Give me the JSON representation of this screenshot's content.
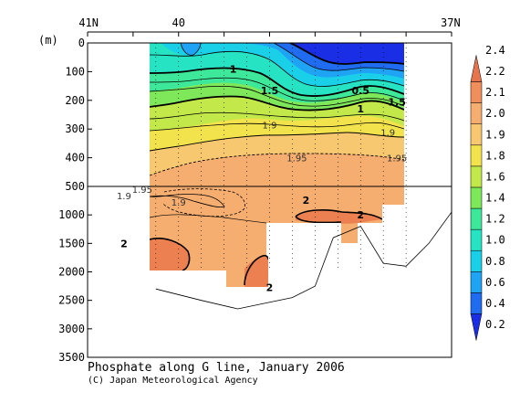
{
  "chart_data": {
    "type": "heatmap",
    "title": "Phosphate along G line, January 2006",
    "credit": "(C) Japan Meteorological Agency",
    "ylabel": "(m)",
    "x_axis": {
      "position": "top",
      "direction": "north-to-south",
      "range": [
        41,
        37
      ],
      "tick_labels": [
        {
          "lat": 41,
          "label": "41N"
        },
        {
          "lat": 40,
          "label": "40"
        },
        {
          "lat": 37,
          "label": "37N"
        }
      ],
      "minor_ticks_lat": [
        41,
        40.5,
        40,
        39.5,
        39,
        38.5,
        38,
        37.5,
        37
      ]
    },
    "y_axis": {
      "inverted": true,
      "split_depth": 500,
      "upper_ticks": [
        0,
        100,
        200,
        300,
        400,
        500
      ],
      "lower_ticks": [
        1000,
        1500,
        2000,
        2500,
        3000,
        3500
      ],
      "tick_labels": [
        "0",
        "100",
        "200",
        "300",
        "400",
        "500",
        "1000",
        "1500",
        "2000",
        "2500",
        "3000",
        "3500"
      ]
    },
    "colorbar": {
      "position": "right",
      "levels": [
        0.2,
        0.4,
        0.6,
        0.8,
        1.0,
        1.2,
        1.4,
        1.6,
        1.8,
        1.9,
        2.0,
        2.1,
        2.2,
        2.4
      ],
      "labels": [
        "0.2",
        "0.4",
        "0.6",
        "0.8",
        "1.0",
        "1.2",
        "1.4",
        "1.6",
        "1.8",
        "1.9",
        "2.0",
        "2.1",
        "2.2",
        "2.4"
      ],
      "colors": [
        "#1a2ee6",
        "#1f6cf0",
        "#1fa3f5",
        "#1ad0e8",
        "#26e3c4",
        "#3ee89a",
        "#7ee85a",
        "#c2e84a",
        "#f2e24c",
        "#f8c870",
        "#f6ae70",
        "#f08e5c",
        "#e8744c"
      ]
    },
    "contour_labels": [
      {
        "lat": 39.4,
        "depth": 90,
        "label": "1"
      },
      {
        "lat": 39.0,
        "depth": 165,
        "label": "1.5"
      },
      {
        "lat": 38.0,
        "depth": 165,
        "label": "0.5"
      },
      {
        "lat": 38.0,
        "depth": 230,
        "label": "1"
      },
      {
        "lat": 37.6,
        "depth": 205,
        "label": "1.5"
      },
      {
        "lat": 37.7,
        "depth": 310,
        "label": "1.9"
      },
      {
        "lat": 39.0,
        "depth": 285,
        "label": "1.9"
      },
      {
        "lat": 38.7,
        "depth": 400,
        "label": "1.95"
      },
      {
        "lat": 37.6,
        "depth": 400,
        "label": "1.95"
      },
      {
        "lat": 40.6,
        "depth": 660,
        "label": "1.9"
      },
      {
        "lat": 40.4,
        "depth": 550,
        "label": "1.95"
      },
      {
        "lat": 40.0,
        "depth": 775,
        "label": "1.9"
      },
      {
        "lat": 38.6,
        "depth": 740,
        "label": "2"
      },
      {
        "lat": 38.0,
        "depth": 1000,
        "label": "2"
      },
      {
        "lat": 40.6,
        "depth": 1500,
        "label": "2"
      },
      {
        "lat": 39.0,
        "depth": 2275,
        "label": "2"
      }
    ],
    "stations_lat": [
      40.25,
      40.0,
      39.75,
      39.5,
      39.25,
      39.0,
      38.75,
      38.5,
      38.25,
      38.0,
      37.75,
      37.5
    ],
    "bottom_profile": [
      {
        "lat": 40.25,
        "depth": 2300
      },
      {
        "lat": 39.75,
        "depth": 2500
      },
      {
        "lat": 39.35,
        "depth": 2650
      },
      {
        "lat": 38.75,
        "depth": 2450
      },
      {
        "lat": 38.5,
        "depth": 2250
      },
      {
        "lat": 38.3,
        "depth": 1400
      },
      {
        "lat": 38.0,
        "depth": 1200
      },
      {
        "lat": 37.75,
        "depth": 1850
      },
      {
        "lat": 37.5,
        "depth": 1900
      },
      {
        "lat": 37.25,
        "depth": 1500
      },
      {
        "lat": 37.0,
        "depth": 950
      }
    ]
  }
}
